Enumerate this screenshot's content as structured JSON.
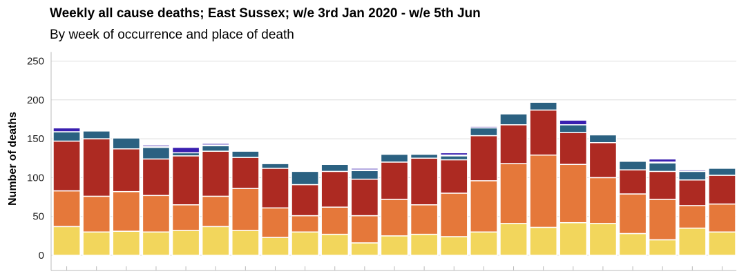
{
  "chart_data": {
    "type": "bar",
    "stacked": true,
    "title": "Weekly all cause deaths; East Sussex; w/e 3rd Jan 2020 - w/e 5th Jun",
    "subtitle": "By week of occurrence and place of death",
    "xlabel": "",
    "ylabel": "Number of deaths",
    "ylim": [
      0,
      260
    ],
    "yticks": [
      0,
      50,
      100,
      150,
      200,
      250
    ],
    "grid": true,
    "series": [
      {
        "color": "#f2d65c",
        "values": [
          37,
          30,
          31,
          30,
          32,
          37,
          32,
          23,
          30,
          27,
          16,
          25,
          27,
          24,
          30,
          41,
          36,
          42,
          41,
          28,
          20,
          35,
          30
        ]
      },
      {
        "color": "#e5783a",
        "values": [
          46,
          46,
          51,
          47,
          33,
          39,
          54,
          38,
          21,
          35,
          35,
          47,
          38,
          56,
          66,
          77,
          93,
          75,
          59,
          51,
          52,
          29,
          36
        ]
      },
      {
        "color": "#ad2a22",
        "values": [
          64,
          74,
          55,
          47,
          63,
          58,
          40,
          51,
          40,
          46,
          47,
          48,
          60,
          43,
          58,
          50,
          58,
          41,
          45,
          31,
          36,
          33,
          37
        ]
      },
      {
        "color": "#2b6181",
        "values": [
          12,
          10,
          14,
          15,
          4,
          7,
          8,
          6,
          17,
          9,
          11,
          10,
          5,
          5,
          10,
          14,
          10,
          10,
          10,
          11,
          11,
          11,
          9
        ]
      },
      {
        "color": "#8877c8",
        "values": [
          0,
          0,
          0,
          1,
          0,
          1,
          0,
          0,
          0,
          0,
          1,
          0,
          0,
          1,
          2,
          0,
          0,
          0,
          0,
          0,
          1,
          2,
          0
        ]
      },
      {
        "color": "#3a1fb0",
        "values": [
          5,
          0,
          0,
          2,
          7,
          2,
          0,
          0,
          0,
          0,
          2,
          0,
          0,
          3,
          0,
          0,
          0,
          6,
          0,
          0,
          4,
          0,
          0
        ]
      }
    ]
  }
}
